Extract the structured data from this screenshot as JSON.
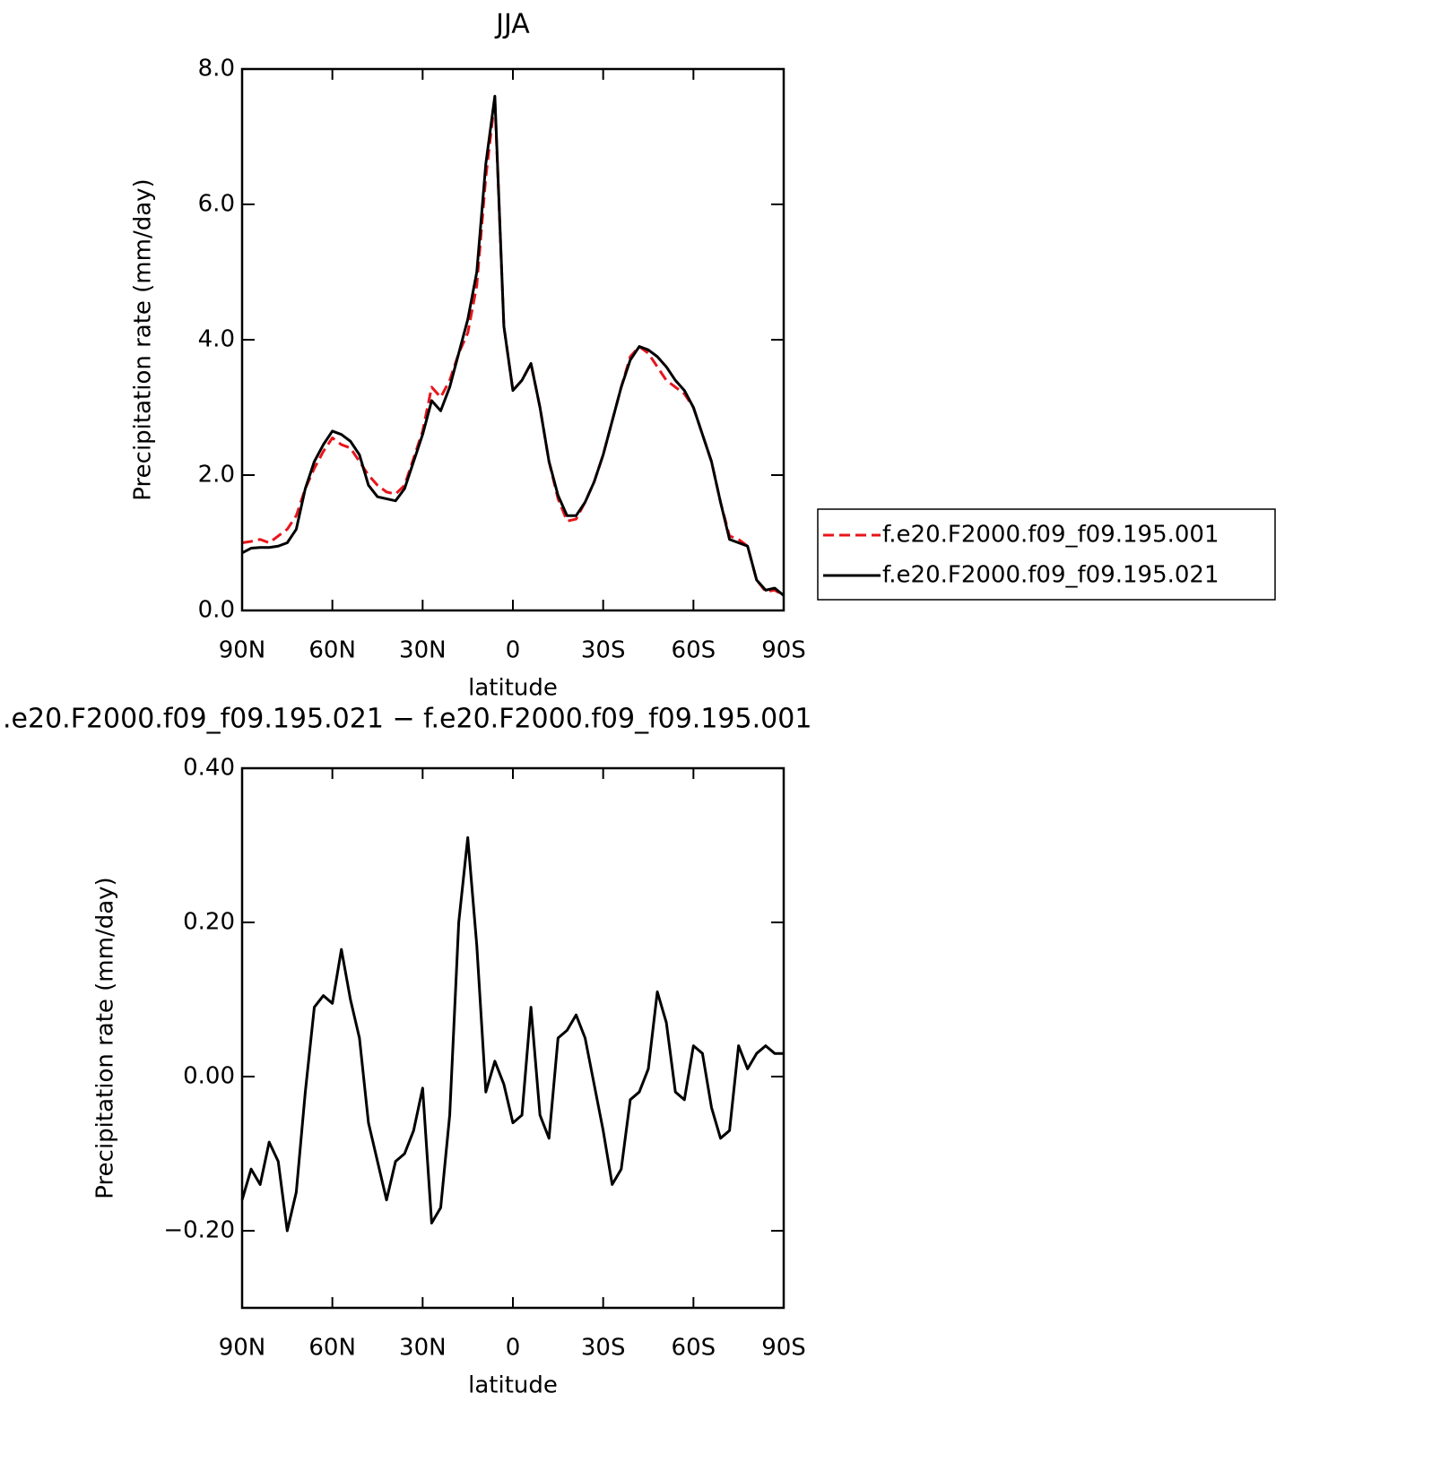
{
  "chart_data": [
    {
      "type": "line",
      "title": "JJA",
      "xlabel": "latitude",
      "ylabel": "Precipitation rate (mm/day)",
      "x": [
        90,
        87,
        84,
        81,
        78,
        75,
        72,
        69,
        66,
        63,
        60,
        57,
        54,
        51,
        48,
        45,
        42,
        39,
        36,
        33,
        30,
        27,
        24,
        21,
        18,
        15,
        12,
        9,
        6,
        3,
        0,
        -3,
        -6,
        -9,
        -12,
        -15,
        -18,
        -21,
        -24,
        -27,
        -30,
        -33,
        -36,
        -39,
        -42,
        -45,
        -48,
        -51,
        -54,
        -57,
        -60,
        -63,
        -66,
        -69,
        -72,
        -75,
        -78,
        -81,
        -84,
        -87,
        -90
      ],
      "series": [
        {
          "name": "f.e20.F2000.f09_f09.195.001",
          "color": "#e8141b",
          "dashed": true,
          "values": [
            1.0,
            1.02,
            1.05,
            1.0,
            1.1,
            1.2,
            1.4,
            1.8,
            2.1,
            2.35,
            2.55,
            2.45,
            2.4,
            2.2,
            2.0,
            1.85,
            1.75,
            1.72,
            1.85,
            2.25,
            2.65,
            3.3,
            3.15,
            3.4,
            3.8,
            4.1,
            4.8,
            6.4,
            7.55,
            4.2,
            3.25,
            3.4,
            3.65,
            3.0,
            2.2,
            1.65,
            1.32,
            1.35,
            1.6,
            1.9,
            2.3,
            2.8,
            3.3,
            3.75,
            3.9,
            3.8,
            3.6,
            3.4,
            3.3,
            3.2,
            3.0,
            2.6,
            2.2,
            1.6,
            1.1,
            1.05,
            0.95,
            0.45,
            0.28,
            0.3,
            0.22
          ]
        },
        {
          "name": "f.e20.F2000.f09_f09.195.021",
          "color": "#000000",
          "dashed": false,
          "values": [
            0.85,
            0.92,
            0.93,
            0.93,
            0.95,
            1.0,
            1.2,
            1.8,
            2.2,
            2.45,
            2.65,
            2.6,
            2.5,
            2.3,
            1.85,
            1.68,
            1.65,
            1.62,
            1.8,
            2.2,
            2.6,
            3.1,
            2.95,
            3.3,
            3.8,
            4.3,
            5.0,
            6.6,
            7.6,
            4.2,
            3.25,
            3.4,
            3.65,
            3.0,
            2.2,
            1.7,
            1.4,
            1.4,
            1.6,
            1.9,
            2.3,
            2.8,
            3.3,
            3.7,
            3.9,
            3.85,
            3.75,
            3.6,
            3.4,
            3.25,
            3.0,
            2.6,
            2.2,
            1.6,
            1.05,
            1.0,
            0.95,
            0.45,
            0.3,
            0.33,
            0.22
          ]
        }
      ],
      "xlim": [
        90,
        -90
      ],
      "xticks": [
        {
          "value": 90,
          "label": "90N"
        },
        {
          "value": 60,
          "label": "60N"
        },
        {
          "value": 30,
          "label": "30N"
        },
        0,
        {
          "value": -30,
          "label": "30S"
        },
        {
          "value": -60,
          "label": "60S"
        },
        {
          "value": -90,
          "label": "90S"
        }
      ],
      "ylim": [
        0,
        8
      ],
      "yticks": [
        {
          "value": 0,
          "label": "0.0"
        },
        {
          "value": 2,
          "label": "2.0"
        },
        {
          "value": 4,
          "label": "4.0"
        },
        {
          "value": 6,
          "label": "6.0"
        },
        {
          "value": 8,
          "label": "8.0"
        }
      ],
      "legend": "right"
    },
    {
      "type": "line",
      "title": ".e20.F2000.f09_f09.195.021 − f.e20.F2000.f09_f09.195.001",
      "xlabel": "latitude",
      "ylabel": "Precipitation rate (mm/day)",
      "x": [
        90,
        87,
        84,
        81,
        78,
        75,
        72,
        69,
        66,
        63,
        60,
        57,
        54,
        51,
        48,
        45,
        42,
        39,
        36,
        33,
        30,
        27,
        24,
        21,
        18,
        15,
        12,
        9,
        6,
        3,
        0,
        -3,
        -6,
        -9,
        -12,
        -15,
        -18,
        -21,
        -24,
        -27,
        -30,
        -33,
        -36,
        -39,
        -42,
        -45,
        -48,
        -51,
        -54,
        -57,
        -60,
        -63,
        -66,
        -69,
        -72,
        -75,
        -78,
        -81,
        -84,
        -87,
        -90
      ],
      "series": [
        {
          "color": "#000000",
          "values": [
            -0.16,
            -0.12,
            -0.14,
            -0.085,
            -0.11,
            -0.2,
            -0.15,
            -0.02,
            0.09,
            0.105,
            0.095,
            0.165,
            0.1,
            0.05,
            -0.06,
            -0.11,
            -0.16,
            -0.11,
            -0.1,
            -0.07,
            -0.015,
            -0.19,
            -0.17,
            -0.05,
            0.2,
            0.31,
            0.17,
            -0.02,
            0.02,
            -0.01,
            -0.06,
            -0.05,
            0.09,
            -0.05,
            -0.08,
            0.05,
            0.06,
            0.08,
            0.05,
            -0.01,
            -0.07,
            -0.14,
            -0.12,
            -0.03,
            -0.02,
            0.01,
            0.11,
            0.07,
            -0.02,
            -0.03,
            0.04,
            0.03,
            -0.04,
            -0.08,
            -0.07,
            0.04,
            0.01,
            0.03,
            0.04,
            0.03,
            0.03
          ]
        }
      ],
      "xlim": [
        90,
        -90
      ],
      "xticks": [
        {
          "value": 90,
          "label": "90N"
        },
        {
          "value": 60,
          "label": "60N"
        },
        {
          "value": 30,
          "label": "30N"
        },
        0,
        {
          "value": -30,
          "label": "30S"
        },
        {
          "value": -60,
          "label": "60S"
        },
        {
          "value": -90,
          "label": "90S"
        }
      ],
      "ylim": [
        -0.3,
        0.4
      ],
      "yticks": [
        {
          "value": -0.2,
          "label": "−0.20"
        },
        {
          "value": 0,
          "label": "0.00"
        },
        {
          "value": 0.2,
          "label": "0.20"
        },
        {
          "value": 0.4,
          "label": "0.40"
        }
      ]
    }
  ]
}
